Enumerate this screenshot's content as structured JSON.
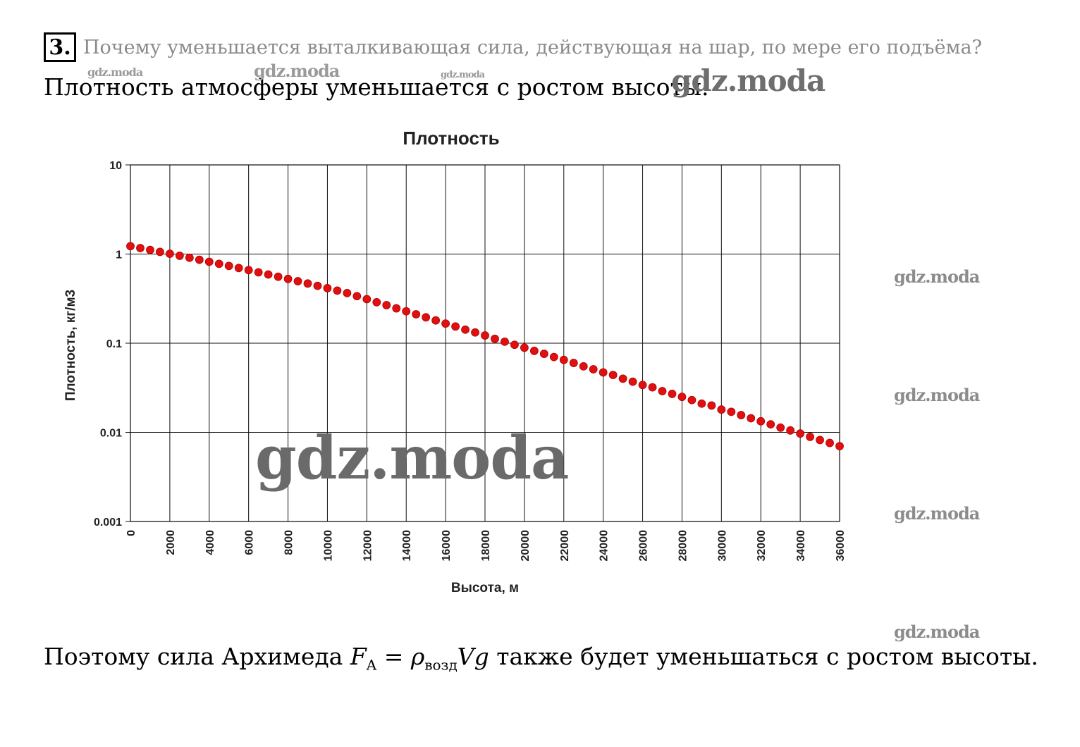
{
  "task": {
    "number": "3.",
    "question": "Почему уменьшается выталкивающая сила, действующая на шар, по мере его подъёма?"
  },
  "answer": {
    "line1": "Плотность атмосферы уменьшается с ростом высоты.",
    "line2_prefix": "Поэтому сила Архимеда ",
    "formula_F": "F",
    "formula_F_sub": "A",
    "formula_eq": " = ",
    "formula_rho": "ρ",
    "formula_rho_sub": "возд",
    "formula_vg": "Vg",
    "line2_suffix": " также будет уменьшаться с ростом высоты."
  },
  "watermarks": {
    "text": "gdz.moda"
  },
  "chart_data": {
    "type": "scatter",
    "title": "Плотность",
    "xlabel": "Высота, м",
    "ylabel": "Плотность, кг/м3",
    "xlim": [
      0,
      36000
    ],
    "ylim": [
      0.001,
      10
    ],
    "y_scale": "log",
    "grid": true,
    "x_ticks": [
      "0",
      "2000",
      "4000",
      "6000",
      "8000",
      "10000",
      "12000",
      "14000",
      "16000",
      "18000",
      "20000",
      "22000",
      "24000",
      "26000",
      "28000",
      "30000",
      "32000",
      "34000",
      "36000"
    ],
    "y_ticks": [
      "10",
      "1",
      "0.1",
      "0.01",
      "0.001"
    ],
    "color": "#e01010",
    "series": [
      {
        "x": [
          0,
          500,
          1000,
          1500,
          2000,
          2500,
          3000,
          3500,
          4000,
          4500,
          5000,
          5500,
          6000,
          6500,
          7000,
          7500,
          8000,
          8500,
          9000,
          9500,
          10000,
          10500,
          11000,
          11500,
          12000,
          12500,
          13000,
          13500,
          14000,
          14500,
          15000,
          15500,
          16000,
          16500,
          17000,
          17500,
          18000,
          18500,
          19000,
          19500,
          20000,
          20500,
          21000,
          21500,
          22000,
          22500,
          23000,
          23500,
          24000,
          24500,
          25000,
          25500,
          26000,
          26500,
          27000,
          27500,
          28000,
          28500,
          29000,
          29500,
          30000,
          30500,
          31000,
          31500,
          32000,
          32500,
          33000,
          33500,
          34000,
          34500,
          35000,
          35500,
          36000
        ],
        "y": [
          1.225,
          1.167,
          1.112,
          1.058,
          1.007,
          0.957,
          0.909,
          0.863,
          0.819,
          0.777,
          0.736,
          0.697,
          0.66,
          0.624,
          0.59,
          0.557,
          0.526,
          0.496,
          0.467,
          0.44,
          0.414,
          0.389,
          0.365,
          0.337,
          0.312,
          0.288,
          0.267,
          0.246,
          0.228,
          0.211,
          0.195,
          0.18,
          0.166,
          0.154,
          0.142,
          0.132,
          0.122,
          0.112,
          0.104,
          0.096,
          0.089,
          0.082,
          0.076,
          0.07,
          0.065,
          0.06,
          0.055,
          0.051,
          0.047,
          0.044,
          0.04,
          0.037,
          0.034,
          0.032,
          0.029,
          0.027,
          0.025,
          0.023,
          0.021,
          0.02,
          0.018,
          0.017,
          0.0156,
          0.0144,
          0.0133,
          0.0123,
          0.0113,
          0.0105,
          0.0097,
          0.0089,
          0.0082,
          0.0076,
          0.007
        ]
      }
    ]
  }
}
